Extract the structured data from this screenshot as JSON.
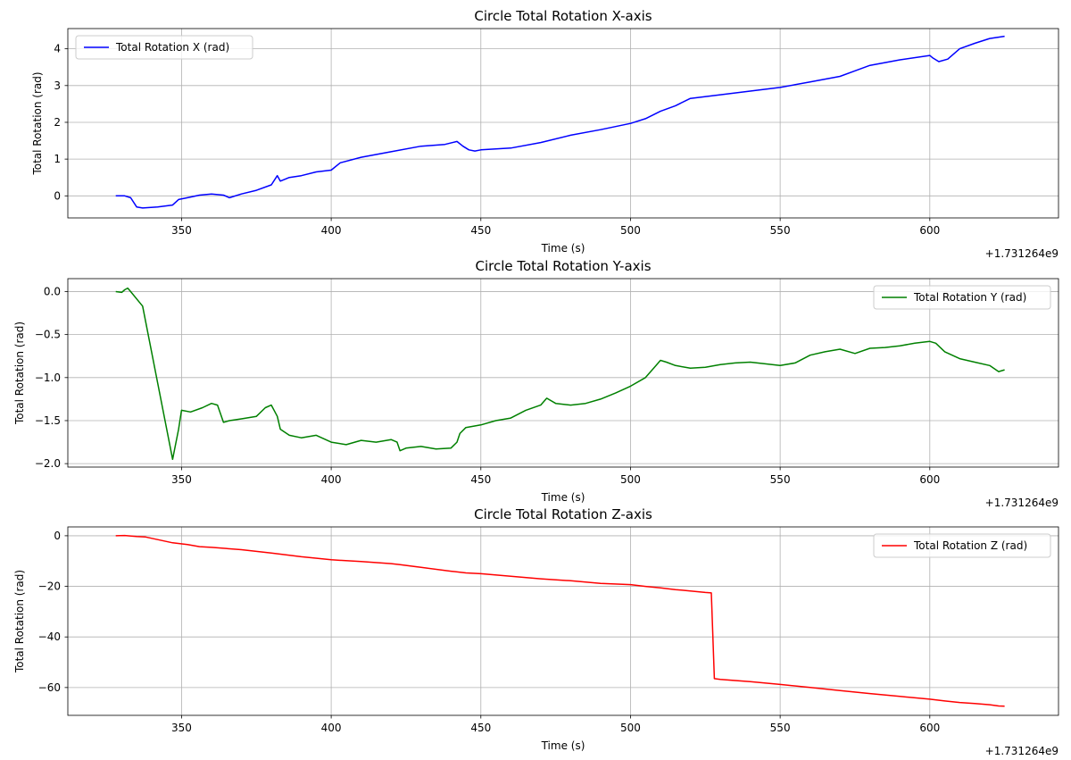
{
  "chart_data": [
    {
      "type": "line",
      "title": "Circle Total Rotation X-axis",
      "xlabel": "Time (s)",
      "ylabel": "Total Rotation (rad)",
      "x_offset_label": "+1.731264e9",
      "xlim": [
        312,
        643
      ],
      "ylim": [
        -0.6,
        4.55
      ],
      "xticks": [
        350,
        400,
        450,
        500,
        550,
        600
      ],
      "yticks": [
        0,
        1,
        2,
        3,
        4
      ],
      "grid": true,
      "legend_loc": "upper-left",
      "color": "#0000ff",
      "series": [
        {
          "name": "Total Rotation X (rad)",
          "x": [
            328,
            331,
            333,
            335,
            337,
            342,
            347,
            349,
            352,
            356,
            360,
            364,
            366,
            370,
            375,
            380,
            382,
            383,
            386,
            390,
            395,
            400,
            403,
            410,
            420,
            430,
            438,
            442,
            444,
            446,
            448,
            450,
            460,
            470,
            480,
            490,
            500,
            505,
            510,
            515,
            520,
            530,
            540,
            550,
            560,
            570,
            575,
            580,
            590,
            600,
            601,
            603,
            606,
            610,
            615,
            620,
            625
          ],
          "y": [
            0.0,
            0.0,
            -0.05,
            -0.3,
            -0.33,
            -0.3,
            -0.25,
            -0.1,
            -0.05,
            0.02,
            0.05,
            0.02,
            -0.05,
            0.05,
            0.15,
            0.3,
            0.55,
            0.4,
            0.5,
            0.55,
            0.65,
            0.7,
            0.9,
            1.05,
            1.2,
            1.35,
            1.4,
            1.48,
            1.35,
            1.25,
            1.22,
            1.25,
            1.3,
            1.45,
            1.65,
            1.8,
            1.97,
            2.1,
            2.3,
            2.45,
            2.65,
            2.75,
            2.85,
            2.95,
            3.1,
            3.25,
            3.4,
            3.55,
            3.7,
            3.82,
            3.75,
            3.65,
            3.72,
            4.0,
            4.15,
            4.28,
            4.34
          ]
        }
      ]
    },
    {
      "type": "line",
      "title": "Circle Total Rotation Y-axis",
      "xlabel": "Time (s)",
      "ylabel": "Total Rotation (rad)",
      "x_offset_label": "+1.731264e9",
      "xlim": [
        312,
        643
      ],
      "ylim": [
        -2.04,
        0.15
      ],
      "xticks": [
        350,
        400,
        450,
        500,
        550,
        600
      ],
      "yticks": [
        0.0,
        -0.5,
        -1.0,
        -1.5,
        -2.0
      ],
      "ytick_labels": [
        "0.0",
        "−0.5",
        "−1.0",
        "−1.5",
        "−2.0"
      ],
      "grid": true,
      "legend_loc": "upper-right",
      "color": "#008000",
      "series": [
        {
          "name": "Total Rotation Y (rad)",
          "x": [
            328,
            330,
            331,
            332,
            333,
            337,
            347,
            349,
            350,
            353,
            357,
            360,
            362,
            364,
            366,
            370,
            375,
            378,
            380,
            382,
            383,
            386,
            390,
            395,
            400,
            405,
            410,
            415,
            420,
            422,
            423,
            425,
            430,
            435,
            440,
            442,
            443,
            445,
            450,
            455,
            460,
            465,
            470,
            472,
            475,
            480,
            485,
            490,
            495,
            500,
            505,
            508,
            510,
            512,
            515,
            520,
            525,
            530,
            535,
            540,
            545,
            550,
            555,
            560,
            565,
            570,
            575,
            580,
            585,
            590,
            595,
            600,
            602,
            605,
            610,
            615,
            620,
            623,
            625
          ],
          "y": [
            0.0,
            -0.01,
            0.02,
            0.04,
            0.0,
            -0.17,
            -1.95,
            -1.6,
            -1.38,
            -1.4,
            -1.35,
            -1.3,
            -1.32,
            -1.52,
            -1.5,
            -1.48,
            -1.45,
            -1.35,
            -1.32,
            -1.45,
            -1.6,
            -1.67,
            -1.7,
            -1.67,
            -1.75,
            -1.78,
            -1.73,
            -1.75,
            -1.72,
            -1.75,
            -1.85,
            -1.82,
            -1.8,
            -1.83,
            -1.82,
            -1.75,
            -1.65,
            -1.58,
            -1.55,
            -1.5,
            -1.47,
            -1.38,
            -1.32,
            -1.24,
            -1.3,
            -1.32,
            -1.3,
            -1.25,
            -1.18,
            -1.1,
            -1.0,
            -0.88,
            -0.8,
            -0.82,
            -0.86,
            -0.89,
            -0.88,
            -0.85,
            -0.83,
            -0.82,
            -0.84,
            -0.86,
            -0.83,
            -0.74,
            -0.7,
            -0.67,
            -0.72,
            -0.66,
            -0.65,
            -0.63,
            -0.6,
            -0.58,
            -0.6,
            -0.7,
            -0.78,
            -0.82,
            -0.86,
            -0.93,
            -0.91
          ]
        }
      ]
    },
    {
      "type": "line",
      "title": "Circle Total Rotation Z-axis",
      "xlabel": "Time (s)",
      "ylabel": "Total Rotation (rad)",
      "x_offset_label": "+1.731264e9",
      "xlim": [
        312,
        643
      ],
      "ylim": [
        -71,
        3.5
      ],
      "xticks": [
        350,
        400,
        450,
        500,
        550,
        600
      ],
      "yticks": [
        0,
        -20,
        -40,
        -60
      ],
      "ytick_labels": [
        "0",
        "−20",
        "−40",
        "−60"
      ],
      "grid": true,
      "legend_loc": "upper-right",
      "color": "#ff0000",
      "series": [
        {
          "name": "Total Rotation Z (rad)",
          "x": [
            328,
            331,
            335,
            338,
            342,
            347,
            352,
            356,
            360,
            370,
            380,
            390,
            400,
            410,
            420,
            423,
            430,
            440,
            445,
            450,
            460,
            470,
            480,
            490,
            500,
            505,
            510,
            515,
            520,
            525,
            527,
            528,
            530,
            540,
            550,
            560,
            570,
            580,
            590,
            600,
            605,
            610,
            615,
            620,
            623,
            625
          ],
          "y": [
            0.0,
            0.1,
            -0.3,
            -0.5,
            -1.5,
            -2.8,
            -3.5,
            -4.3,
            -4.6,
            -5.5,
            -6.8,
            -8.3,
            -9.5,
            -10.2,
            -11.0,
            -11.4,
            -12.5,
            -14.0,
            -14.7,
            -15.0,
            -16.0,
            -17.0,
            -17.8,
            -18.8,
            -19.3,
            -20.0,
            -20.6,
            -21.3,
            -21.8,
            -22.4,
            -22.6,
            -56.5,
            -56.8,
            -57.7,
            -58.8,
            -60.0,
            -61.2,
            -62.4,
            -63.5,
            -64.6,
            -65.3,
            -65.9,
            -66.3,
            -66.8,
            -67.3,
            -67.4
          ]
        }
      ]
    }
  ]
}
